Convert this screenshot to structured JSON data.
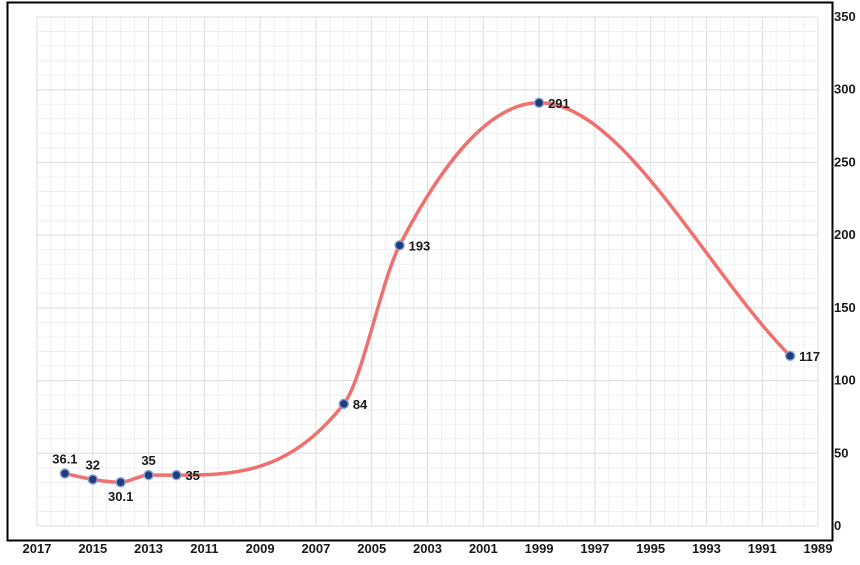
{
  "chart_data": {
    "type": "line",
    "title": "",
    "xlabel": "",
    "ylabel": "",
    "x_axis_reversed": true,
    "xlim": [
      1989,
      2017
    ],
    "ylim": [
      0,
      350
    ],
    "x_ticks": [
      "2017",
      "2015",
      "2013",
      "2011",
      "2009",
      "2007",
      "2005",
      "2003",
      "2001",
      "1999",
      "1997",
      "1995",
      "1993",
      "1991",
      "1989"
    ],
    "y_ticks": [
      "0",
      "50",
      "100",
      "150",
      "200",
      "250",
      "300",
      "350"
    ],
    "y_axis_position": "right",
    "grid": true,
    "legend": "none",
    "line_smoothing": "smooth",
    "colors": {
      "line": "#f07070",
      "marker_fill": "#1f3d7a",
      "marker_stroke": "#8aa2d4",
      "frame": "#000000",
      "grid": "#e6e6e6"
    },
    "series": [
      {
        "x": [
          2016,
          2015,
          2014,
          2013,
          2012,
          2006,
          2004,
          1999,
          1990
        ],
        "values": [
          36.1,
          32,
          30.1,
          35,
          35,
          84,
          193,
          291,
          117
        ],
        "labels": [
          "36.1",
          "32",
          "30.1",
          "35",
          "35",
          "84",
          "193",
          "291",
          "117"
        ],
        "label_positions": [
          "above",
          "above",
          "below",
          "above",
          "right",
          "right",
          "right",
          "right",
          "right"
        ]
      }
    ]
  }
}
